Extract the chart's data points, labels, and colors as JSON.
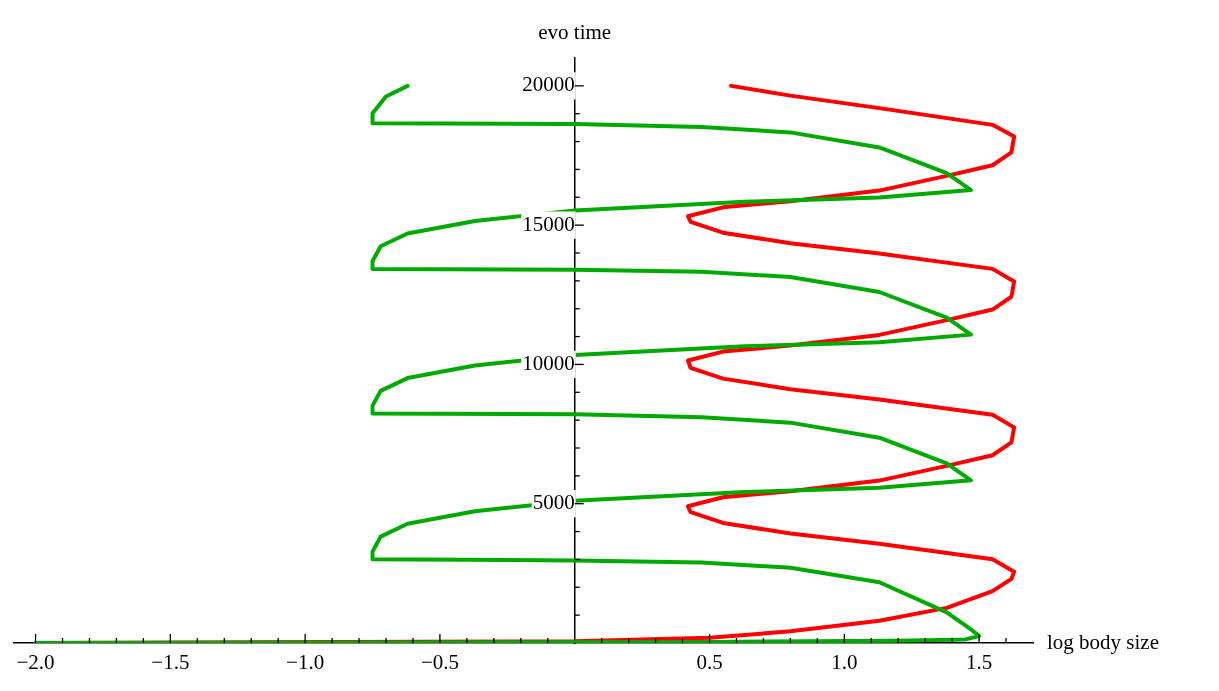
{
  "chart_data": {
    "type": "line",
    "xlabel": "log body size",
    "ylabel": "evo time",
    "marker": "none",
    "line_style": "solid",
    "xlim": [
      -2.08,
      1.7
    ],
    "ylim": [
      0,
      21000
    ],
    "xticks": [
      {
        "value": -2,
        "label": "−2.0"
      },
      {
        "value": -1.9,
        "label": null
      },
      {
        "value": -1.8,
        "label": null
      },
      {
        "value": -1.7,
        "label": null
      },
      {
        "value": -1.6,
        "label": null
      },
      {
        "value": -1.5,
        "label": "−1.5"
      },
      {
        "value": -1.4,
        "label": null
      },
      {
        "value": -1.3,
        "label": null
      },
      {
        "value": -1.2,
        "label": null
      },
      {
        "value": -1.1,
        "label": null
      },
      {
        "value": -1,
        "label": "−1.0"
      },
      {
        "value": -0.9,
        "label": null
      },
      {
        "value": -0.8,
        "label": null
      },
      {
        "value": -0.7,
        "label": null
      },
      {
        "value": -0.6,
        "label": null
      },
      {
        "value": -0.5,
        "label": "−0.5"
      },
      {
        "value": -0.4,
        "label": null
      },
      {
        "value": -0.3,
        "label": null
      },
      {
        "value": -0.2,
        "label": null
      },
      {
        "value": -0.1,
        "label": null
      },
      {
        "value": 0.1,
        "label": null
      },
      {
        "value": 0.2,
        "label": null
      },
      {
        "value": 0.3,
        "label": null
      },
      {
        "value": 0.4,
        "label": null
      },
      {
        "value": 0.5,
        "label": "0.5"
      },
      {
        "value": 0.6,
        "label": null
      },
      {
        "value": 0.7,
        "label": null
      },
      {
        "value": 0.8,
        "label": null
      },
      {
        "value": 0.9,
        "label": null
      },
      {
        "value": 1,
        "label": "1.0"
      },
      {
        "value": 1.1,
        "label": null
      },
      {
        "value": 1.2,
        "label": null
      },
      {
        "value": 1.3,
        "label": null
      },
      {
        "value": 1.4,
        "label": null
      },
      {
        "value": 1.5,
        "label": "1.5"
      },
      {
        "value": 1.6,
        "label": null
      }
    ],
    "yticks": [
      {
        "value": 1000,
        "label": null
      },
      {
        "value": 2000,
        "label": null
      },
      {
        "value": 3000,
        "label": null
      },
      {
        "value": 4000,
        "label": null
      },
      5000,
      {
        "value": 6000,
        "label": null
      },
      {
        "value": 7000,
        "label": null
      },
      {
        "value": 8000,
        "label": null
      },
      {
        "value": 9000,
        "label": null
      },
      10000,
      {
        "value": 11000,
        "label": null
      },
      {
        "value": 12000,
        "label": null
      },
      {
        "value": 13000,
        "label": null
      },
      {
        "value": 14000,
        "label": null
      },
      15000,
      {
        "value": 16000,
        "label": null
      },
      {
        "value": 17000,
        "label": null
      },
      {
        "value": 18000,
        "label": null
      },
      {
        "value": 19000,
        "label": null
      },
      20000
    ],
    "series": [
      {
        "color": "#00aa00",
        "x": [
          -2.0,
          0.5,
          1.2,
          1.45,
          1.5,
          1.47,
          1.38,
          1.13,
          0.8,
          0.47,
          0.0,
          -0.75,
          -0.75,
          -0.72,
          -0.62,
          -0.37,
          0.0,
          0.63,
          1.13,
          1.47,
          1.38,
          1.13,
          0.8,
          0.47,
          0.0,
          -0.75,
          -0.75,
          -0.72,
          -0.62,
          -0.37,
          0.0,
          0.63,
          1.13,
          1.47,
          1.38,
          1.13,
          0.8,
          0.47,
          0.0,
          -0.75,
          -0.75,
          -0.72,
          -0.62,
          -0.37,
          0.0,
          0.63,
          1.13,
          1.47,
          1.38,
          1.13,
          0.8,
          0.47,
          0.0,
          -0.75,
          -0.75,
          -0.7,
          -0.62
        ],
        "values": [
          0,
          40,
          80,
          130,
          250,
          490,
          1100,
          2180,
          2700,
          2890,
          2960,
          3010,
          3280,
          3820,
          4280,
          4730,
          5110,
          5420,
          5570,
          5840,
          6450,
          7370,
          7910,
          8100,
          8210,
          8240,
          8520,
          9050,
          9510,
          9960,
          10340,
          10650,
          10800,
          11070,
          11680,
          12600,
          13140,
          13330,
          13400,
          13430,
          13710,
          14240,
          14700,
          15150,
          15530,
          15840,
          15990,
          16260,
          16870,
          17790,
          18330,
          18520,
          18630,
          18660,
          19020,
          19620,
          20000
        ]
      },
      {
        "color": "#ff0000",
        "x": [
          -2.0,
          0.0,
          0.5,
          0.8,
          1.13,
          1.38,
          1.55,
          1.62,
          1.63,
          1.55,
          1.13,
          0.8,
          0.55,
          0.43,
          0.42,
          0.55,
          0.8,
          1.13,
          1.38,
          1.55,
          1.62,
          1.63,
          1.55,
          1.13,
          0.8,
          0.55,
          0.43,
          0.42,
          0.55,
          0.8,
          1.13,
          1.38,
          1.55,
          1.62,
          1.63,
          1.55,
          1.13,
          0.8,
          0.55,
          0.43,
          0.42,
          0.55,
          0.8,
          1.13,
          1.38,
          1.55,
          1.62,
          1.63,
          1.55,
          1.13,
          0.8,
          0.58
        ],
        "values": [
          0,
          60,
          190,
          420,
          800,
          1260,
          1860,
          2300,
          2560,
          3010,
          3560,
          3930,
          4310,
          4700,
          4910,
          5230,
          5450,
          5830,
          6360,
          6740,
          7200,
          7740,
          8190,
          8740,
          9110,
          9490,
          9880,
          10140,
          10460,
          10680,
          11060,
          11590,
          11970,
          12430,
          12980,
          13430,
          13980,
          14350,
          14730,
          15120,
          15320,
          15640,
          15860,
          16240,
          16770,
          17150,
          17610,
          18180,
          18600,
          19200,
          19650,
          20000
        ]
      }
    ]
  }
}
